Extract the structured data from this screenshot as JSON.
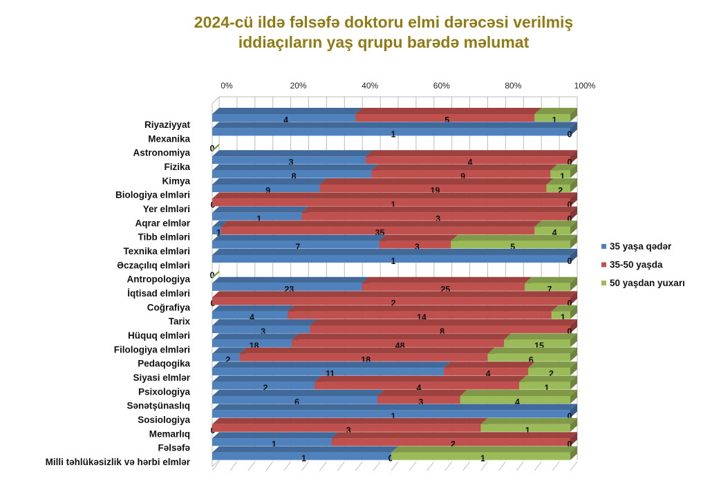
{
  "chart_data": {
    "type": "bar",
    "stacked": "percent",
    "orientation": "horizontal",
    "title": "2024-cü ildə fəlsəfə doktoru elmi dərəcəsi verilmiş iddiaçıların yaş qrupu barədə məlumat",
    "title_lines": [
      "2024-cü ildə fəlsəfə doktoru elmi dərəcəsi verilmiş",
      "iddiaçıların yaş qrupu barədə məlumat"
    ],
    "xlabel": "",
    "ylabel": "",
    "xlim": [
      0,
      100
    ],
    "x_ticks": [
      "0%",
      "20%",
      "40%",
      "60%",
      "80%",
      "100%"
    ],
    "grid": true,
    "legend_position": "right",
    "categories": [
      "Riyaziyyat",
      "Mexanika",
      "Astronomiya",
      "Fizika",
      "Kimya",
      "Biologiya elmləri",
      "Yer elmləri",
      "Aqrar elmlər",
      "Tibb elmləri",
      "Texnika elmləri",
      "Əczaçılıq elmləri",
      "Antropologiya",
      "İqtisad elmləri",
      "Coğrafiya",
      "Tarix",
      "Hüquq elmləri",
      "Filologiya elmləri",
      "Pedaqogika",
      "Siyasi elmlər",
      "Psixologiya",
      "Sənətşünaslıq",
      "Sosiologiya",
      "Memarlıq",
      "Fəlsəfə",
      "Milli təhlükəsizlik və hərbi elmlər"
    ],
    "series": [
      {
        "name": "35 yaşa qədər",
        "color": "#4f81bd",
        "values": [
          4,
          1,
          0,
          3,
          8,
          9,
          0,
          1,
          1,
          7,
          1,
          0,
          23,
          0,
          4,
          3,
          18,
          2,
          11,
          2,
          6,
          1,
          0,
          1,
          1
        ]
      },
      {
        "name": "35-50 yaşda",
        "color": "#c0504d",
        "values": [
          5,
          0,
          0,
          4,
          9,
          19,
          1,
          3,
          35,
          3,
          0,
          0,
          25,
          2,
          14,
          8,
          48,
          18,
          4,
          4,
          3,
          0,
          3,
          2,
          0
        ]
      },
      {
        "name": "50 yaşdan yuxarı",
        "color": "#9bbb59",
        "values": [
          1,
          0,
          0,
          0,
          1,
          2,
          0,
          0,
          4,
          5,
          0,
          0,
          7,
          0,
          1,
          0,
          15,
          6,
          2,
          1,
          4,
          0,
          1,
          0,
          1
        ]
      }
    ]
  }
}
